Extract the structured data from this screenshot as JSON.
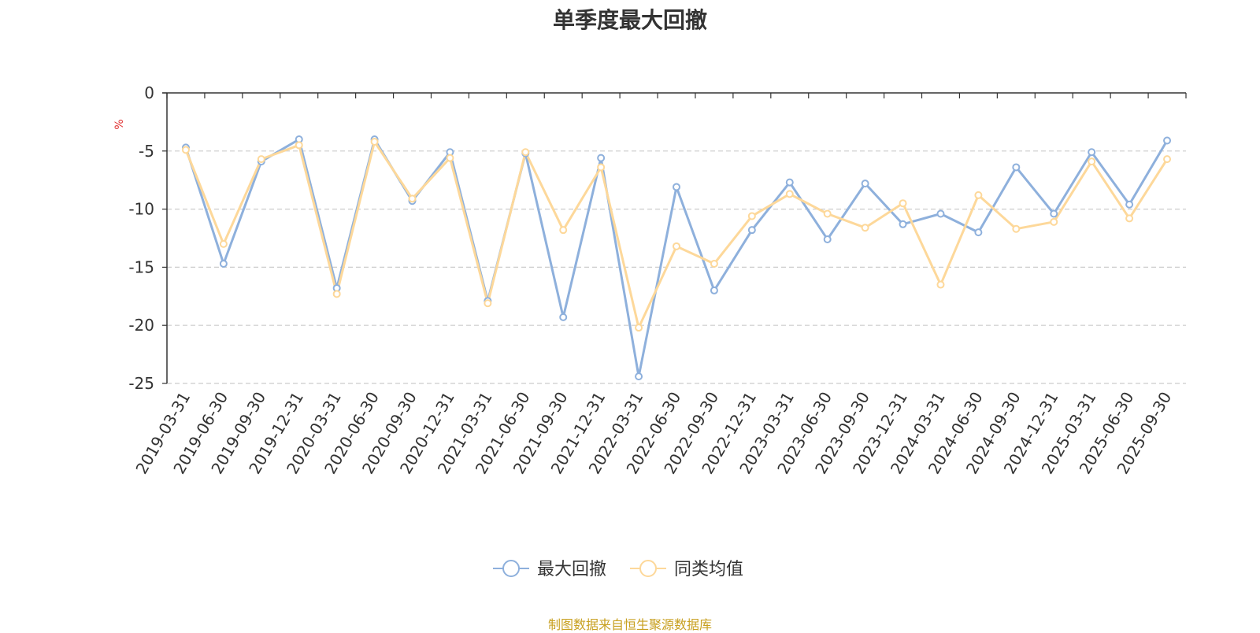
{
  "chart_data": {
    "type": "line",
    "title": "单季度最大回撤",
    "ylabel": "%",
    "ylim": [
      -25,
      0
    ],
    "yticks": [
      0,
      -5,
      -10,
      -15,
      -20,
      -25
    ],
    "grid": true,
    "legend_position": "bottom-center",
    "x": [
      "2019-03-31",
      "2019-06-30",
      "2019-09-30",
      "2019-12-31",
      "2020-03-31",
      "2020-06-30",
      "2020-09-30",
      "2020-12-31",
      "2021-03-31",
      "2021-06-30",
      "2021-09-30",
      "2021-12-31",
      "2022-03-31",
      "2022-06-30",
      "2022-09-30",
      "2022-12-31",
      "2023-03-31",
      "2023-06-30",
      "2023-09-30",
      "2023-12-31",
      "2024-03-31",
      "2024-06-30",
      "2024-09-30",
      "2024-12-31",
      "2025-03-31",
      "2025-06-30",
      "2025-09-30"
    ],
    "series": [
      {
        "name": "最大回撤",
        "color": "#8eb0dc",
        "values": [
          -4.7,
          -14.7,
          -5.9,
          -4.0,
          -16.8,
          -4.0,
          -9.3,
          -5.1,
          -17.9,
          -5.2,
          -19.3,
          -5.6,
          -24.4,
          -8.1,
          -17.0,
          -11.8,
          -7.7,
          -12.6,
          -7.8,
          -11.3,
          -10.4,
          -12.0,
          -6.4,
          -10.4,
          -5.1,
          -9.6,
          -4.1
        ]
      },
      {
        "name": "同类均值",
        "color": "#fdd89a",
        "values": [
          -4.9,
          -13.0,
          -5.7,
          -4.5,
          -17.3,
          -4.2,
          -9.1,
          -5.6,
          -18.1,
          -5.1,
          -11.8,
          -6.4,
          -20.2,
          -13.2,
          -14.7,
          -10.6,
          -8.7,
          -10.4,
          -11.6,
          -9.5,
          -16.5,
          -8.8,
          -11.7,
          -11.1,
          -5.9,
          -10.8,
          -5.7
        ]
      }
    ],
    "source_note": "制图数据来自恒生聚源数据库",
    "unit_color": "#e03030"
  }
}
